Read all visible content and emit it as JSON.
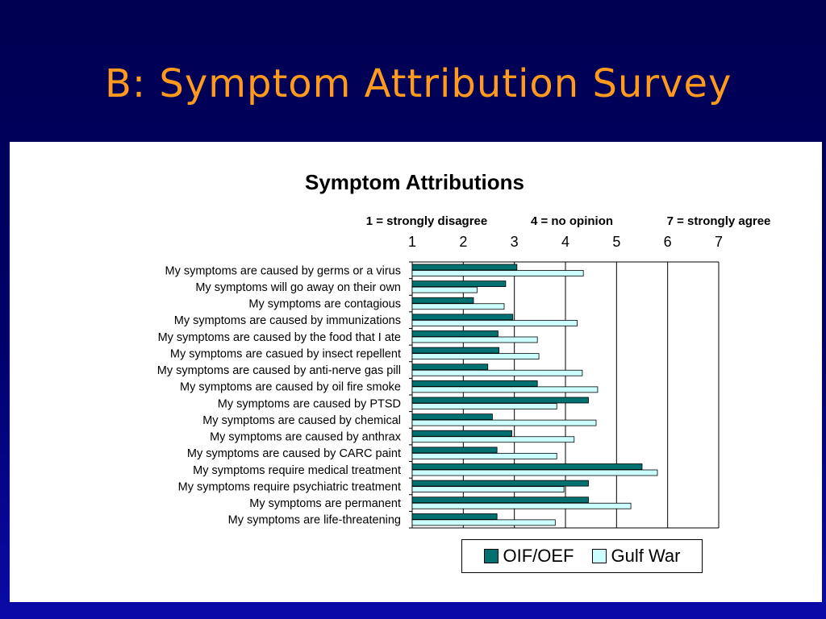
{
  "slide": {
    "title": "B: Symptom Attribution Survey"
  },
  "colors": {
    "oif": "#007070",
    "gulf": "#ccffff",
    "title": "#ff9a1f"
  },
  "chart_data": {
    "type": "bar",
    "orientation": "horizontal",
    "title": "Symptom Attributions",
    "scale_notes": [
      "1 = strongly disagree",
      "4 = no opinion",
      "7 = strongly agree"
    ],
    "xlim": [
      1,
      7
    ],
    "xticks": [
      "1",
      "2",
      "3",
      "4",
      "5",
      "6",
      "7"
    ],
    "grid": "vertical",
    "legend_position": "bottom",
    "categories": [
      "My symptoms are caused by germs or a virus",
      "My symptoms will go away on their own",
      "My symptoms are contagious",
      "My symptoms are caused by immunizations",
      "My symptoms are caused by the food that I ate",
      "My symptoms are casued by insect repellent",
      "My symptoms are caused by anti-nerve gas pill",
      "My symptoms are caused by oil fire smoke",
      "My symptoms are caused by PTSD",
      "My symptoms are caused by chemical",
      "My symptoms are caused by anthrax",
      "My symptoms are caused by CARC paint",
      "My symptoms require medical treatment",
      "My symptoms require psychiatric treatment",
      "My symptoms are permanent",
      "My symptoms are life-threatening"
    ],
    "series": [
      {
        "name": "OIF/OEF",
        "values": [
          3.05,
          2.83,
          2.2,
          2.97,
          2.68,
          2.7,
          2.48,
          3.45,
          4.45,
          2.57,
          2.95,
          2.66,
          5.5,
          4.45,
          4.45,
          2.66
        ]
      },
      {
        "name": "Gulf War",
        "values": [
          4.35,
          2.27,
          2.8,
          4.23,
          3.45,
          3.48,
          4.33,
          4.63,
          3.83,
          4.6,
          4.17,
          3.83,
          5.8,
          3.97,
          5.28,
          3.8
        ]
      }
    ]
  }
}
